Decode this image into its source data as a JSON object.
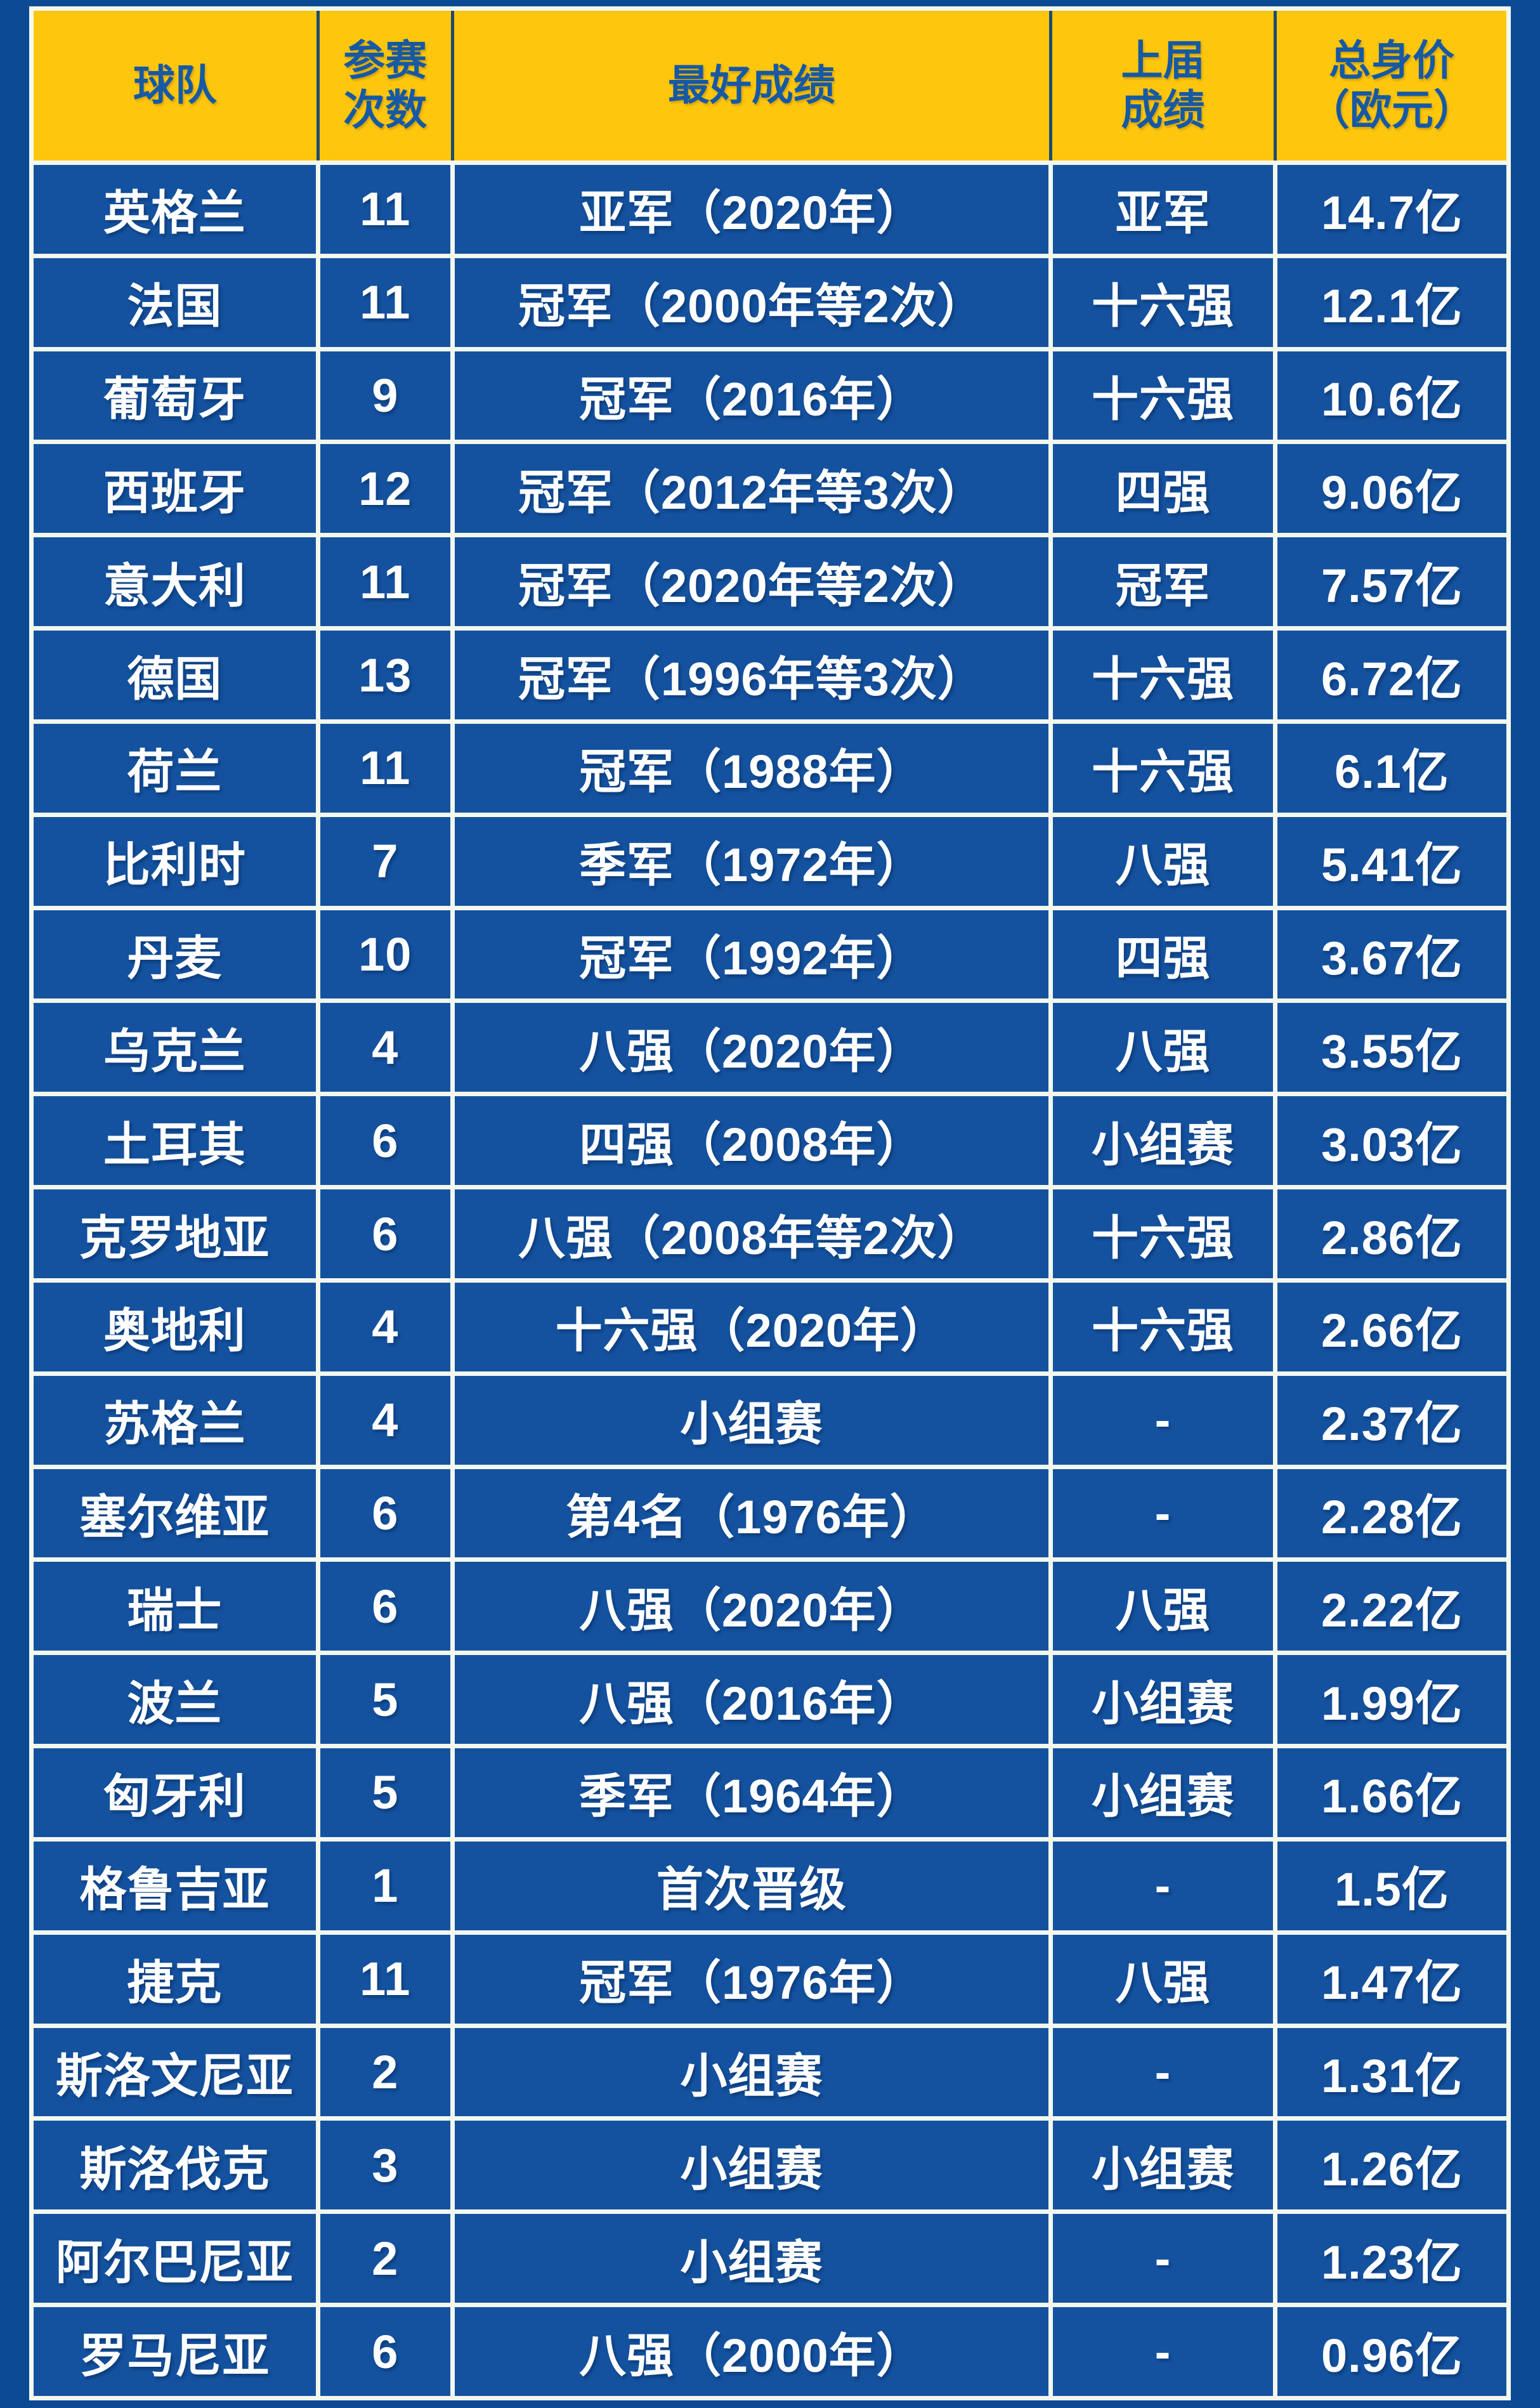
{
  "table": {
    "header_display": [
      "球队",
      "参赛\n次数",
      "最好成绩",
      "上届\n成绩",
      "总身价\n（欧元）"
    ]
  },
  "colors": {
    "page_background": "#0C4A94",
    "cell_blue": "#14529F",
    "header_yellow": "#FEC70D",
    "header_text_blue": "#1659A4",
    "grid_line_white": "#F3F8EE",
    "header_divider_navy": "#1F4B6E",
    "body_text": "#FFFFFF"
  },
  "chart_data": {
    "type": "table",
    "columns": [
      "球队",
      "参赛次数",
      "最好成绩",
      "上届成绩",
      "总身价（欧元）"
    ],
    "rows": [
      [
        "英格兰",
        "11",
        "亚军（2020年）",
        "亚军",
        "14.7亿"
      ],
      [
        "法国",
        "11",
        "冠军（2000年等2次）",
        "十六强",
        "12.1亿"
      ],
      [
        "葡萄牙",
        "9",
        "冠军（2016年）",
        "十六强",
        "10.6亿"
      ],
      [
        "西班牙",
        "12",
        "冠军（2012年等3次）",
        "四强",
        "9.06亿"
      ],
      [
        "意大利",
        "11",
        "冠军（2020年等2次）",
        "冠军",
        "7.57亿"
      ],
      [
        "德国",
        "13",
        "冠军（1996年等3次）",
        "十六强",
        "6.72亿"
      ],
      [
        "荷兰",
        "11",
        "冠军（1988年）",
        "十六强",
        "6.1亿"
      ],
      [
        "比利时",
        "7",
        "季军（1972年）",
        "八强",
        "5.41亿"
      ],
      [
        "丹麦",
        "10",
        "冠军（1992年）",
        "四强",
        "3.67亿"
      ],
      [
        "乌克兰",
        "4",
        "八强（2020年）",
        "八强",
        "3.55亿"
      ],
      [
        "土耳其",
        "6",
        "四强（2008年）",
        "小组赛",
        "3.03亿"
      ],
      [
        "克罗地亚",
        "6",
        "八强（2008年等2次）",
        "十六强",
        "2.86亿"
      ],
      [
        "奥地利",
        "4",
        "十六强（2020年）",
        "十六强",
        "2.66亿"
      ],
      [
        "苏格兰",
        "4",
        "小组赛",
        "-",
        "2.37亿"
      ],
      [
        "塞尔维亚",
        "6",
        "第4名（1976年）",
        "-",
        "2.28亿"
      ],
      [
        "瑞士",
        "6",
        "八强（2020年）",
        "八强",
        "2.22亿"
      ],
      [
        "波兰",
        "5",
        "八强（2016年）",
        "小组赛",
        "1.99亿"
      ],
      [
        "匈牙利",
        "5",
        "季军（1964年）",
        "小组赛",
        "1.66亿"
      ],
      [
        "格鲁吉亚",
        "1",
        "首次晋级",
        "-",
        "1.5亿"
      ],
      [
        "捷克",
        "11",
        "冠军（1976年）",
        "八强",
        "1.47亿"
      ],
      [
        "斯洛文尼亚",
        "2",
        "小组赛",
        "-",
        "1.31亿"
      ],
      [
        "斯洛伐克",
        "3",
        "小组赛",
        "小组赛",
        "1.26亿"
      ],
      [
        "阿尔巴尼亚",
        "2",
        "小组赛",
        "-",
        "1.23亿"
      ],
      [
        "罗马尼亚",
        "6",
        "八强（2000年）",
        "-",
        "0.96亿"
      ]
    ]
  }
}
